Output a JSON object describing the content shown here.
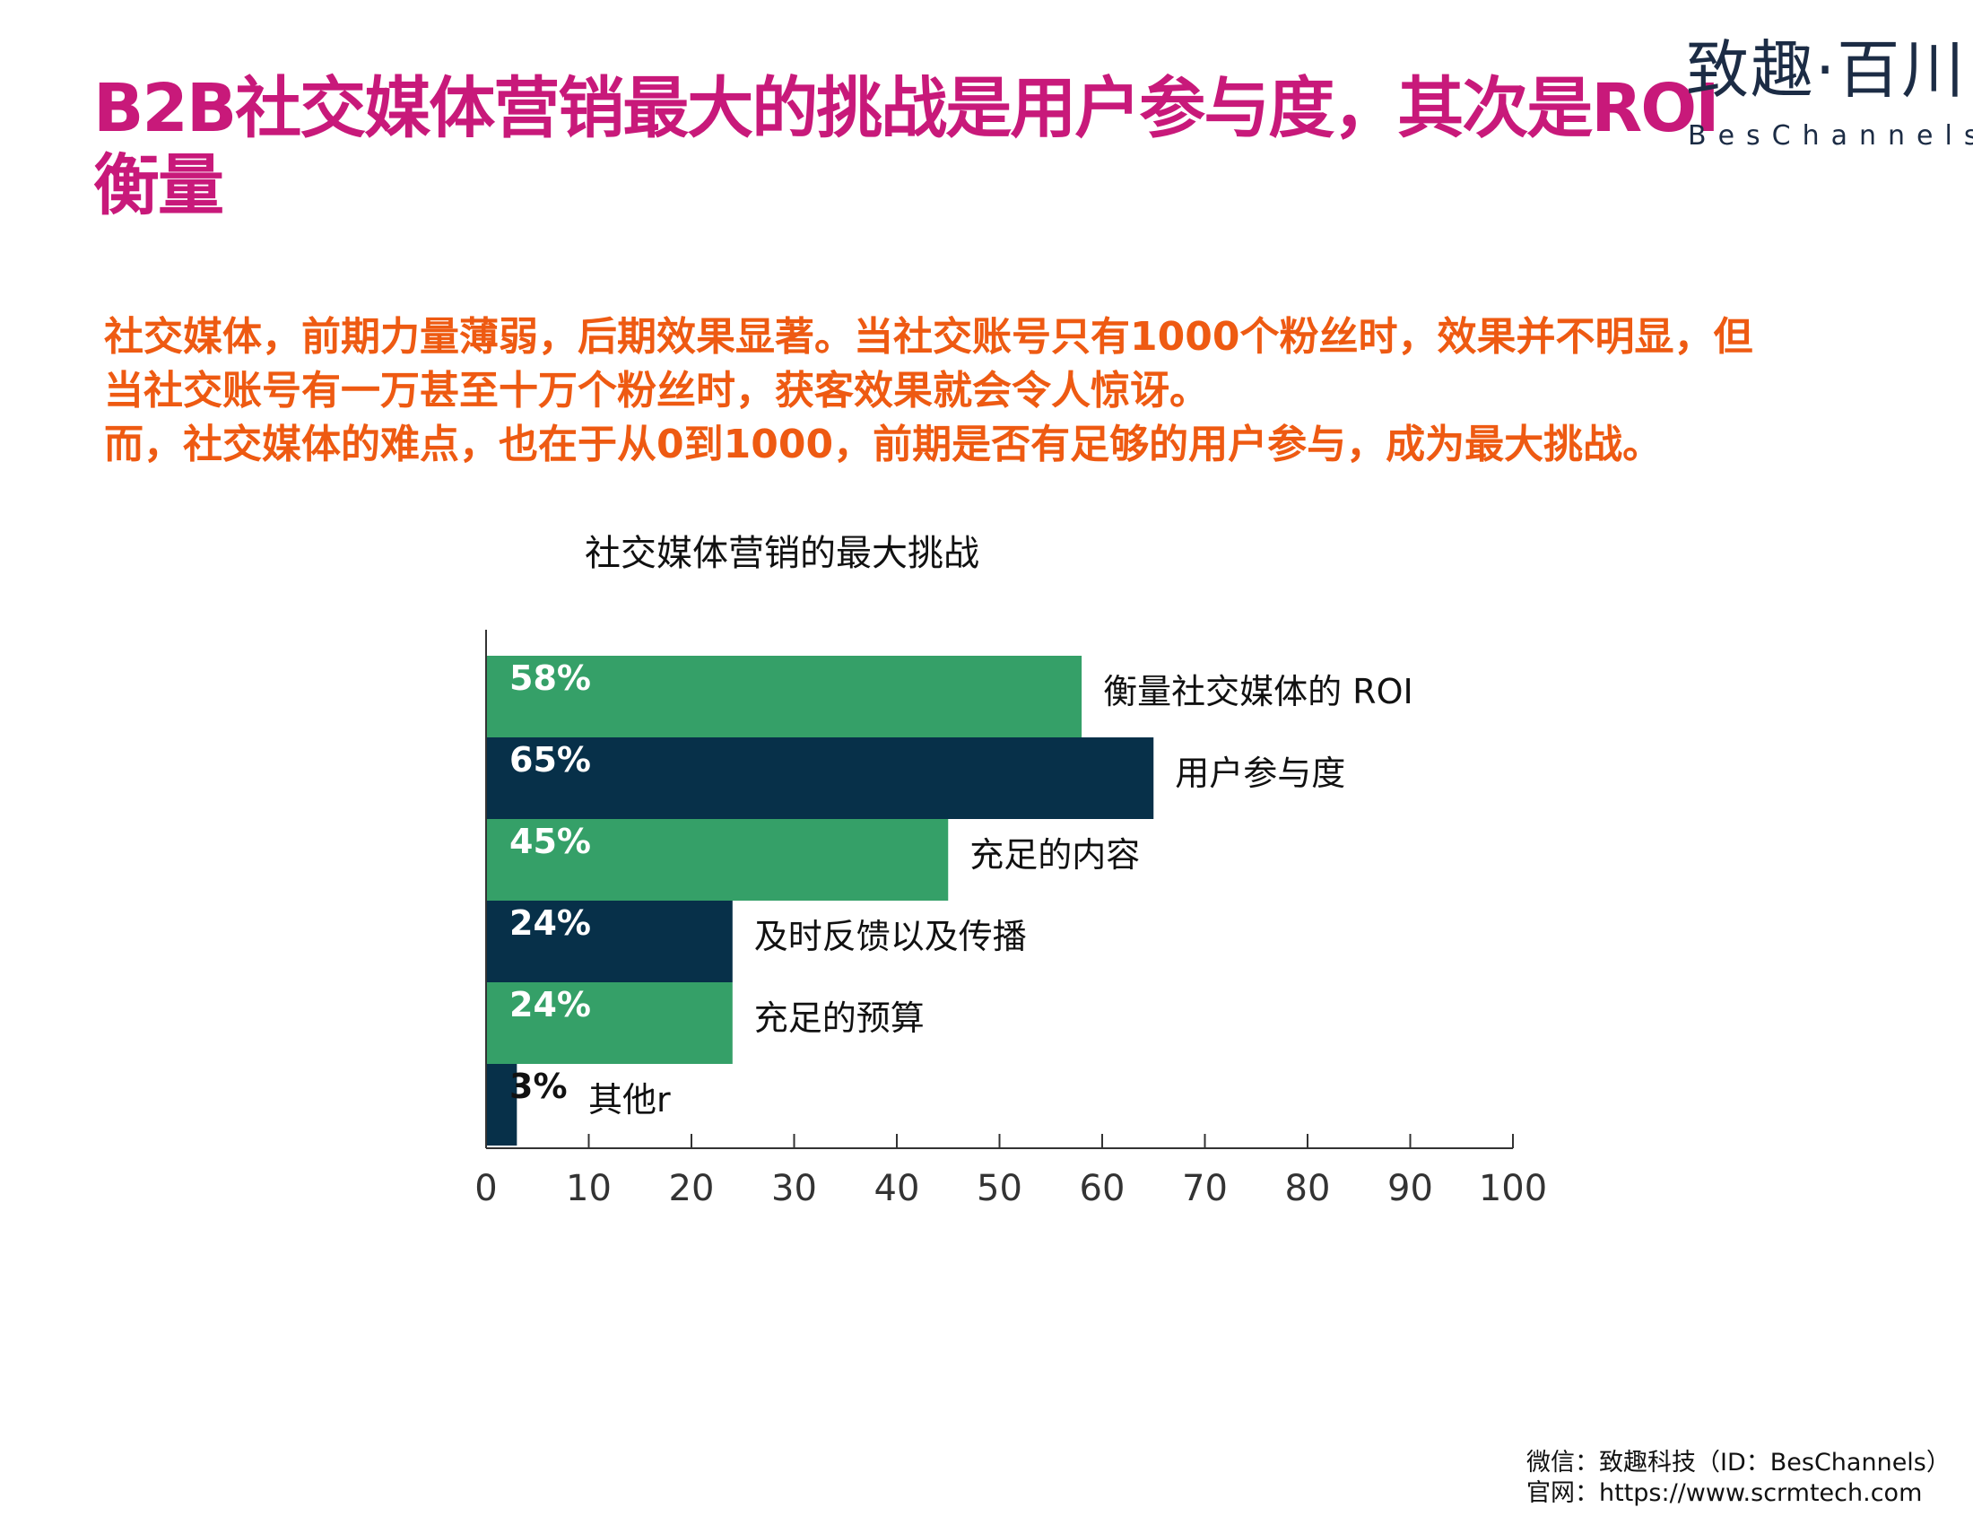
{
  "header": {
    "title": "B2B社交媒体营销最大的挑战是用户参与度，其次是ROI衡量"
  },
  "logo": {
    "chinese": "致趣·百川",
    "english": "BesChannels"
  },
  "intro": {
    "lines": [
      "社交媒体，前期力量薄弱，后期效果显著。当社交账号只有1000个粉丝时，效果并不明显，但",
      "当社交账号有一万甚至十万个粉丝时，获客效果就会令人惊讶。",
      "而，社交媒体的难点，也在于从0到1000，前期是否有足够的用户参与，成为最大挑战。"
    ]
  },
  "chart_data": {
    "type": "bar",
    "orientation": "horizontal",
    "title": "社交媒体营销的最大挑战",
    "categories": [
      "衡量社交媒体的 ROI",
      "用户参与度",
      "充足的内容",
      "及时反馈以及传播",
      "充足的预算",
      "其他r"
    ],
    "values": [
      58,
      65,
      45,
      24,
      24,
      3
    ],
    "data_labels": [
      "58%",
      "65%",
      "45%",
      "24%",
      "24%",
      "3%"
    ],
    "xlim": [
      0,
      100
    ],
    "xticks": [
      0,
      10,
      20,
      30,
      40,
      50,
      60,
      70,
      80,
      90,
      100
    ],
    "xlabel": "",
    "ylabel": "",
    "grid": false,
    "legend": "none",
    "bar_colors": [
      "#35a068",
      "#073049",
      "#35a068",
      "#073049",
      "#35a068",
      "#073049"
    ]
  },
  "footer": {
    "wechat": "微信：致趣科技（ID：BesChannels）",
    "website": "官网：https://www.scrmtech.com"
  }
}
